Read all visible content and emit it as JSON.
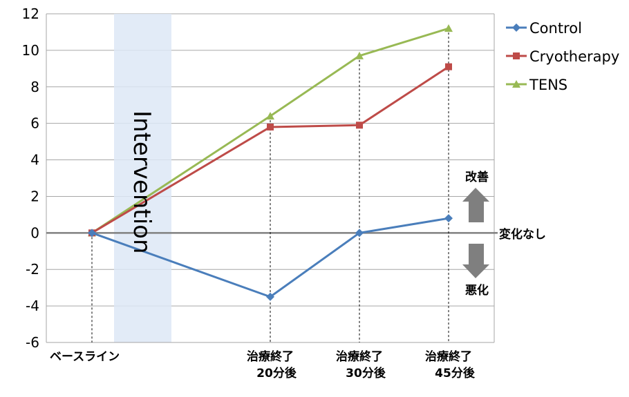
{
  "chart_data": {
    "type": "line",
    "categories": [
      [
        "ベースライン"
      ],
      [
        "治療終了",
        "20分後"
      ],
      [
        "治療終了",
        "30分後"
      ],
      [
        "治療終了",
        "45分後"
      ]
    ],
    "ylim": [
      -6,
      12
    ],
    "yticks": [
      -6,
      -4,
      -2,
      0,
      2,
      4,
      6,
      8,
      10,
      12
    ],
    "grid": true,
    "legend_position": "right",
    "series": [
      {
        "name": "Control",
        "color": "#4a7ebb",
        "marker": "diamond",
        "values": [
          0,
          -3.5,
          0,
          0.8
        ]
      },
      {
        "name": "Cryotherapy",
        "color": "#be4b48",
        "marker": "square",
        "values": [
          0,
          5.8,
          5.9,
          9.1
        ]
      },
      {
        "name": "TENS",
        "color": "#98b954",
        "marker": "triangle",
        "values": [
          0,
          6.4,
          9.7,
          11.2
        ]
      }
    ],
    "intervention_label": "Intervention",
    "annotations": {
      "improve": "改善",
      "no_change": "変化なし",
      "worse": "悪化"
    }
  }
}
